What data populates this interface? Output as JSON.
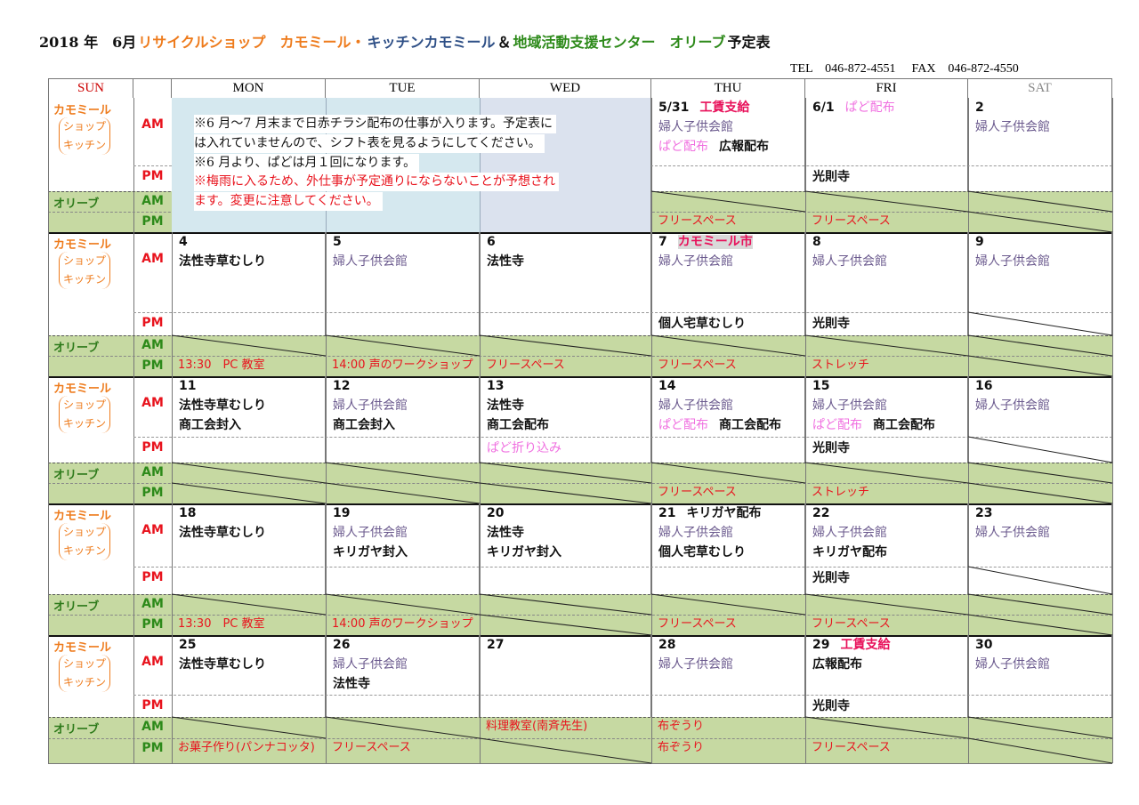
{
  "title": [
    {
      "text": "2018 年　6月",
      "color": "#111111"
    },
    {
      "text": "リサイクルショップ　カモミール・",
      "color": "#ee7b1c"
    },
    {
      "text": "キッチンカモミール",
      "color": "#2e4f86"
    },
    {
      "text": "＆",
      "color": "#111111"
    },
    {
      "text": "地域活動支援センター　オリーブ",
      "color": "#2d8a1a"
    },
    {
      "text": "予定表",
      "color": "#111111"
    }
  ],
  "contact": {
    "tel": "TEL　046-872-4551",
    "fax": "FAX　046-872-4550"
  },
  "header": {
    "sun": "SUN",
    "days": [
      "MON",
      "TUE",
      "WED",
      "THU",
      "FRI",
      "SAT"
    ]
  },
  "labels": {
    "kamomile": "カモミール",
    "shop": "ショップ",
    "kitchen": "キッチン",
    "olive": "オリーブ",
    "am": "AM",
    "pm": "PM"
  },
  "colors": {
    "black": "#111111",
    "purple": "#6b5a8e",
    "pink": "#f070e0",
    "red": "#e8141e",
    "magenta": "#e8105a",
    "olive_bg": "#c6d9a2",
    "sun": "#cc0000",
    "sat": "#888888"
  },
  "notice": [
    {
      "text": "※6 月～7 月末まで日赤チラシ配布の仕事が入ります。予定表に",
      "color": "#111111"
    },
    {
      "text": "は入れていませんので、シフト表を見るようにしてください。",
      "color": "#111111"
    },
    {
      "text": "※6 月より、ぱどは月１回になります。",
      "color": "#111111"
    },
    {
      "text": "※梅雨に入るため、外仕事が予定通りにならないことが予想され",
      "color": "#e8141e"
    },
    {
      "text": "ます。変更に注意してください。",
      "color": "#e8141e"
    }
  ],
  "weeks": [
    {
      "days": [
        null,
        null,
        null,
        {
          "am": [
            [
              [
                "5/31",
                "black"
              ],
              [
                "工賃支給",
                "magenta"
              ]
            ],
            [
              [
                "婦人子供会館",
                "purple"
              ]
            ],
            [
              [
                "ぱど配布",
                "pink"
              ],
              [
                "広報配布",
                "black"
              ]
            ]
          ],
          "pm": [],
          "olive_am": "",
          "olive_pm": "フリースペース"
        },
        {
          "am": [
            [
              [
                "6/1",
                "black"
              ],
              [
                "ぱど配布",
                "pink"
              ]
            ]
          ],
          "pm": [
            [
              [
                "光則寺",
                "black"
              ]
            ]
          ],
          "olive_am": "",
          "olive_pm": "フリースペース"
        },
        {
          "am": [
            [
              [
                "2",
                "black"
              ]
            ],
            [
              [
                "婦人子供会館",
                "purple"
              ]
            ]
          ],
          "pm": [],
          "olive_am": "",
          "olive_pm": ""
        }
      ]
    },
    {
      "days": [
        {
          "am": [
            [
              [
                "4",
                "black"
              ]
            ],
            [
              [
                "法性寺草むしり",
                "black"
              ]
            ]
          ],
          "pm": [],
          "olive_am": "",
          "olive_pm": "13:30　PC 教室"
        },
        {
          "am": [
            [
              [
                "5",
                "black"
              ]
            ],
            [
              [
                "婦人子供会館",
                "purple"
              ]
            ]
          ],
          "pm": [],
          "olive_am": "",
          "olive_pm": "14:00 声のワークショップ"
        },
        {
          "am": [
            [
              [
                "6",
                "black"
              ]
            ],
            [
              [
                "法性寺",
                "black"
              ]
            ]
          ],
          "pm": [],
          "olive_am": "",
          "olive_pm": "フリースペース"
        },
        {
          "am": [
            [
              [
                "7",
                "black"
              ],
              [
                "カモミール市",
                "magenta-hl"
              ]
            ],
            [
              [
                "婦人子供会館",
                "purple"
              ]
            ]
          ],
          "pm": [
            [
              [
                "個人宅草むしり",
                "black"
              ]
            ]
          ],
          "olive_am": "",
          "olive_pm": "フリースペース"
        },
        {
          "am": [
            [
              [
                "8",
                "black"
              ]
            ],
            [
              [
                "婦人子供会館",
                "purple"
              ]
            ]
          ],
          "pm": [
            [
              [
                "光則寺",
                "black"
              ]
            ]
          ],
          "olive_am": "",
          "olive_pm": "ストレッチ"
        },
        {
          "am": [
            [
              [
                "9",
                "black"
              ]
            ],
            [
              [
                "婦人子供会館",
                "purple"
              ]
            ]
          ],
          "pm": [],
          "pm_crossed": true,
          "olive_am": "",
          "olive_pm": ""
        }
      ]
    },
    {
      "days": [
        {
          "am": [
            [
              [
                "11",
                "black"
              ]
            ],
            [
              [
                "法性寺草むしり",
                "black"
              ]
            ],
            [
              [
                "商工会封入",
                "black"
              ]
            ]
          ],
          "pm": [],
          "olive_am": "",
          "olive_pm": ""
        },
        {
          "am": [
            [
              [
                "12",
                "black"
              ]
            ],
            [
              [
                "婦人子供会館",
                "purple"
              ]
            ],
            [
              [
                "商工会封入",
                "black"
              ]
            ]
          ],
          "pm": [],
          "olive_am": "",
          "olive_pm": ""
        },
        {
          "am": [
            [
              [
                "13",
                "black"
              ]
            ],
            [
              [
                "法性寺",
                "black"
              ]
            ],
            [
              [
                "商工会配布",
                "black"
              ]
            ]
          ],
          "pm": [
            [
              [
                "ぱど折り込み",
                "pink"
              ]
            ]
          ],
          "olive_am": "",
          "olive_pm": ""
        },
        {
          "am": [
            [
              [
                "14",
                "black"
              ]
            ],
            [
              [
                "婦人子供会館",
                "purple"
              ]
            ],
            [
              [
                "ぱど配布",
                "pink"
              ],
              [
                "商工会配布",
                "black"
              ]
            ]
          ],
          "pm": [],
          "olive_am": "",
          "olive_pm": "フリースペース"
        },
        {
          "am": [
            [
              [
                "15",
                "black"
              ]
            ],
            [
              [
                "婦人子供会館",
                "purple"
              ]
            ],
            [
              [
                "ぱど配布",
                "pink"
              ],
              [
                "商工会配布",
                "black"
              ]
            ]
          ],
          "pm": [
            [
              [
                "光則寺",
                "black"
              ]
            ]
          ],
          "olive_am": "",
          "olive_pm": "ストレッチ"
        },
        {
          "am": [
            [
              [
                "16",
                "black"
              ]
            ],
            [
              [
                "婦人子供会館",
                "purple"
              ]
            ]
          ],
          "pm": [],
          "pm_crossed": true,
          "olive_am": "",
          "olive_pm": ""
        }
      ]
    },
    {
      "days": [
        {
          "am": [
            [
              [
                "18",
                "black"
              ]
            ],
            [
              [
                "法性寺草むしり",
                "black"
              ]
            ]
          ],
          "pm": [],
          "olive_am": "",
          "olive_pm": "13:30　PC 教室"
        },
        {
          "am": [
            [
              [
                "19",
                "black"
              ]
            ],
            [
              [
                "婦人子供会館",
                "purple"
              ]
            ],
            [
              [
                "キリガヤ封入",
                "black"
              ]
            ]
          ],
          "pm": [],
          "olive_am": "",
          "olive_pm": "14:00 声のワークショップ"
        },
        {
          "am": [
            [
              [
                "20",
                "black"
              ]
            ],
            [
              [
                "法性寺",
                "black"
              ]
            ],
            [
              [
                "キリガヤ封入",
                "black"
              ]
            ]
          ],
          "pm": [],
          "olive_am": "",
          "olive_pm": ""
        },
        {
          "am": [
            [
              [
                "21",
                "black"
              ],
              [
                "キリガヤ配布",
                "black"
              ]
            ],
            [
              [
                "婦人子供会館",
                "purple"
              ]
            ],
            [
              [
                "個人宅草むしり",
                "black"
              ]
            ]
          ],
          "pm": [],
          "olive_am": "",
          "olive_pm": "フリースペース"
        },
        {
          "am": [
            [
              [
                "22",
                "black"
              ]
            ],
            [
              [
                "婦人子供会館",
                "purple"
              ]
            ],
            [
              [
                "キリガヤ配布",
                "black"
              ]
            ]
          ],
          "pm": [
            [
              [
                "光則寺",
                "black"
              ]
            ]
          ],
          "olive_am": "",
          "olive_pm": "フリースペース"
        },
        {
          "am": [
            [
              [
                "23",
                "black"
              ]
            ],
            [
              [
                "婦人子供会館",
                "purple"
              ]
            ]
          ],
          "pm": [],
          "pm_crossed": true,
          "olive_am": "",
          "olive_pm": ""
        }
      ]
    },
    {
      "days": [
        {
          "am": [
            [
              [
                "25",
                "black"
              ]
            ],
            [
              [
                "法性寺草むしり",
                "black"
              ]
            ]
          ],
          "pm": [],
          "olive_am": "",
          "olive_pm": "お菓子作り(パンナコッタ)"
        },
        {
          "am": [
            [
              [
                "26",
                "black"
              ]
            ],
            [
              [
                "婦人子供会館",
                "purple"
              ]
            ],
            [
              [
                "法性寺",
                "black"
              ]
            ]
          ],
          "pm": [],
          "olive_am": "",
          "olive_pm": "フリースペース"
        },
        {
          "am": [
            [
              [
                "27",
                "black"
              ]
            ]
          ],
          "pm": [],
          "olive_am": "料理教室(南斉先生)",
          "olive_pm": ""
        },
        {
          "am": [
            [
              [
                "28",
                "black"
              ]
            ],
            [
              [
                "婦人子供会館",
                "purple"
              ]
            ]
          ],
          "pm": [],
          "olive_am": "布ぞうり",
          "olive_pm": "布ぞうり"
        },
        {
          "am": [
            [
              [
                "29",
                "black"
              ],
              [
                "工賃支給",
                "magenta"
              ]
            ],
            [
              [
                "広報配布",
                "black"
              ]
            ]
          ],
          "pm": [
            [
              [
                "光則寺",
                "black"
              ]
            ]
          ],
          "olive_am": "",
          "olive_pm": "フリースペース"
        },
        {
          "am": [
            [
              [
                "30",
                "black"
              ]
            ],
            [
              [
                "婦人子供会館",
                "purple"
              ]
            ]
          ],
          "pm": [],
          "olive_am": "",
          "olive_pm": ""
        }
      ]
    }
  ]
}
